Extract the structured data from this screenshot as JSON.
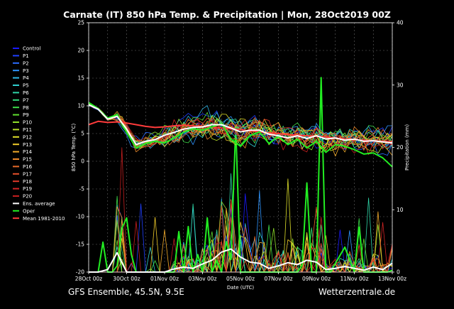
{
  "title": "Carnate  (IT)  850 hPa Temp. & Precipitation | Mon, 28Oct2019 00Z",
  "footer": {
    "left": "GFS Ensemble, 45.5N, 9.5E",
    "right": "Wetterzentrale.de"
  },
  "chart_data": {
    "type": "line",
    "xlabel": "Date (UTC)",
    "ylabel": "850 hPa Temp. (°C)",
    "ylabel_right": "Precipitation (mm)",
    "ylim": [
      -20,
      25
    ],
    "ylim_right": [
      0,
      40
    ],
    "yticks": [
      "25",
      "20",
      "15",
      "10",
      "5",
      "0",
      "-5",
      "-10",
      "-15",
      "-20"
    ],
    "yticks_right": [
      "40",
      "30",
      "20",
      "10",
      "0"
    ],
    "xticks": [
      "28Oct 00z",
      "30Oct 00z",
      "01Nov 00z",
      "03Nov 00z",
      "05Nov 00z",
      "07Nov 00z",
      "09Nov 00z",
      "11Nov 00z",
      "13Nov 00z"
    ],
    "x_hours": [
      0,
      384
    ],
    "grid": true,
    "legend_position": "left",
    "legend": [
      {
        "name": "Control",
        "color": "#1a1aff"
      },
      {
        "name": "P1",
        "color": "#1f3fff"
      },
      {
        "name": "P2",
        "color": "#2a6cff"
      },
      {
        "name": "P3",
        "color": "#2f95ff"
      },
      {
        "name": "P4",
        "color": "#2fb7e8"
      },
      {
        "name": "P5",
        "color": "#2fcfcf"
      },
      {
        "name": "P6",
        "color": "#2fd6a8"
      },
      {
        "name": "P7",
        "color": "#33d97a"
      },
      {
        "name": "P8",
        "color": "#3ddc4a"
      },
      {
        "name": "P9",
        "color": "#5fe02f"
      },
      {
        "name": "P10",
        "color": "#8ee02a"
      },
      {
        "name": "P11",
        "color": "#b9e02a"
      },
      {
        "name": "P12",
        "color": "#dfe02a"
      },
      {
        "name": "P13",
        "color": "#f0cc2a"
      },
      {
        "name": "P14",
        "color": "#f0aa2a"
      },
      {
        "name": "P15",
        "color": "#ee8a2a"
      },
      {
        "name": "P16",
        "color": "#e96a2a"
      },
      {
        "name": "P17",
        "color": "#e5502a"
      },
      {
        "name": "P18",
        "color": "#e03a2a"
      },
      {
        "name": "P19",
        "color": "#d42525"
      },
      {
        "name": "P20",
        "color": "#c41f1f"
      },
      {
        "name": "Ens. average",
        "color": "#ffffff"
      },
      {
        "name": "Oper",
        "color": "#22ee22"
      },
      {
        "name": "Mean 1981-2010",
        "color": "#ff3b3b"
      }
    ],
    "series": [
      {
        "name": "Ens. average",
        "x": [
          0,
          12,
          24,
          36,
          48,
          60,
          72,
          84,
          96,
          108,
          120,
          132,
          144,
          156,
          168,
          180,
          192,
          204,
          216,
          228,
          240,
          252,
          264,
          276,
          288,
          300,
          312,
          324,
          336,
          348,
          360,
          372,
          384
        ],
        "y": [
          10.2,
          9.4,
          7.6,
          8.1,
          5.8,
          3.0,
          3.6,
          3.9,
          4.7,
          5.2,
          5.8,
          6.1,
          6.2,
          6.6,
          6.6,
          6.0,
          5.3,
          5.6,
          5.6,
          4.9,
          4.6,
          4.2,
          4.6,
          4.1,
          4.6,
          4.0,
          4.2,
          3.8,
          4.0,
          3.6,
          3.7,
          3.5,
          3.3
        ]
      },
      {
        "name": "Oper",
        "x": [
          0,
          12,
          24,
          36,
          48,
          60,
          72,
          84,
          96,
          108,
          120,
          132,
          144,
          156,
          168,
          180,
          192,
          204,
          216,
          228,
          240,
          252,
          264,
          276,
          288,
          300,
          312,
          324,
          336,
          348,
          360,
          372,
          384
        ],
        "y": [
          10.6,
          9.5,
          7.8,
          8.4,
          5.2,
          2.4,
          3.2,
          3.6,
          3.3,
          4.2,
          5.2,
          5.9,
          5.6,
          6.2,
          6.8,
          4.0,
          2.7,
          4.6,
          5.3,
          3.2,
          4.5,
          3.0,
          4.0,
          2.4,
          3.6,
          1.6,
          3.0,
          2.7,
          2.1,
          1.3,
          1.5,
          0.6,
          -1.0
        ]
      },
      {
        "name": "Mean 1981-2010",
        "x": [
          0,
          12,
          24,
          36,
          48,
          60,
          72,
          84,
          96,
          108,
          120,
          132,
          144,
          156,
          168,
          180,
          192,
          204,
          216,
          228,
          240,
          252,
          264,
          276,
          288,
          300,
          312,
          324,
          336,
          348,
          360,
          372,
          384
        ],
        "y": [
          6.6,
          7.2,
          7.0,
          7.1,
          6.9,
          6.6,
          6.3,
          6.1,
          6.2,
          6.4,
          6.5,
          6.4,
          6.3,
          6.1,
          6.0,
          5.9,
          5.7,
          5.5,
          5.3,
          5.1,
          5.0,
          4.8,
          4.7,
          4.6,
          4.5,
          4.4,
          4.2,
          4.0,
          3.9,
          3.8,
          3.7,
          3.6,
          3.5
        ]
      }
    ],
    "precip_avg": {
      "x": [
        0,
        12,
        24,
        36,
        48,
        60,
        72,
        84,
        96,
        108,
        120,
        132,
        144,
        156,
        168,
        180,
        192,
        204,
        216,
        228,
        240,
        252,
        264,
        276,
        288,
        300,
        312,
        324,
        336,
        348,
        360,
        372,
        384
      ],
      "y": [
        0,
        0,
        0.4,
        3.1,
        0,
        0,
        0,
        0,
        0,
        0.5,
        0.8,
        0.6,
        1.3,
        1.9,
        3.2,
        3.7,
        2.4,
        1.6,
        1.4,
        0.6,
        1.0,
        1.5,
        1.2,
        1.9,
        1.6,
        0.4,
        0.6,
        0.9,
        0.6,
        0.3,
        0.8,
        0.4,
        1.4
      ]
    },
    "precip_oper": {
      "x": [
        0,
        12,
        18,
        24,
        30,
        36,
        42,
        48,
        54,
        60,
        72,
        84,
        96,
        108,
        114,
        120,
        126,
        132,
        138,
        144,
        150,
        156,
        162,
        168,
        174,
        180,
        186,
        192,
        204,
        216,
        222,
        228,
        234,
        240,
        252,
        264,
        270,
        276,
        282,
        288,
        294,
        300,
        306,
        312,
        324,
        336,
        342,
        348,
        360,
        372,
        378,
        384
      ],
      "y": [
        0,
        0,
        4.8,
        0,
        0,
        1.0,
        7.0,
        8.7,
        2.8,
        0,
        0,
        0,
        0,
        0,
        6.5,
        0,
        7.3,
        0,
        2.8,
        0,
        8.7,
        0,
        1.8,
        0,
        4.9,
        2.0,
        23.4,
        0,
        0,
        0,
        0,
        0,
        0,
        0,
        0,
        0,
        1.1,
        14.3,
        0,
        0,
        31.2,
        0,
        0,
        1.4,
        4.0,
        0,
        7.2,
        0,
        0,
        0,
        0,
        0.3
      ]
    }
  }
}
